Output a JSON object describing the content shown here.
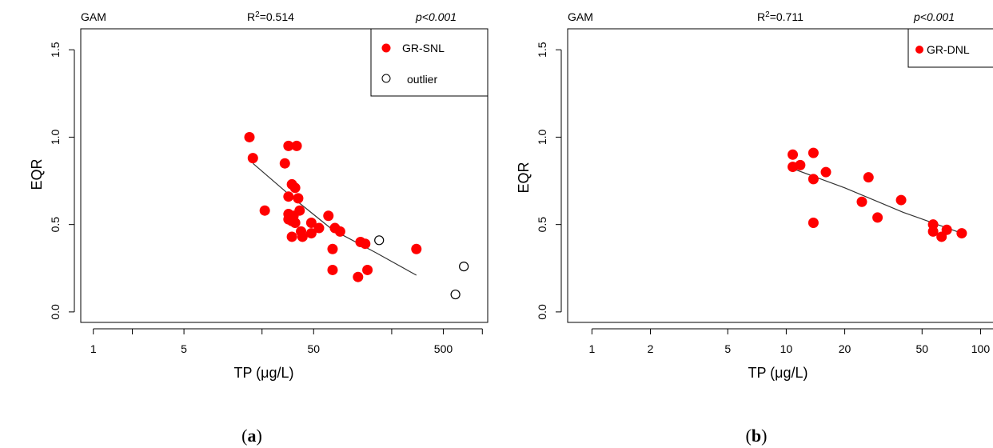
{
  "chart_data": [
    {
      "id": "a",
      "type": "scatter",
      "caption": "a",
      "method": "GAM",
      "r2": "=0.514",
      "pvalue": "p<0.001",
      "xlabel": "TP (μg/L)",
      "ylabel": "EQR",
      "x_scale": "log",
      "xlim": [
        0.8,
        1100
      ],
      "ylim": [
        -0.06,
        1.62
      ],
      "xticks": [
        1,
        5,
        50,
        500
      ],
      "x_minor_ticks": [
        2,
        20,
        200,
        1000
      ],
      "yticks": [
        "0.0",
        "0.5",
        "1.0",
        "1.5"
      ],
      "grid": false,
      "legend_position": "top-right",
      "series": [
        {
          "name": "GR-SNL",
          "marker": "filled-circle",
          "color": "#ff0000",
          "points": [
            [
              16,
              1.0
            ],
            [
              17,
              0.88
            ],
            [
              21,
              0.58
            ],
            [
              30,
              0.85
            ],
            [
              32,
              0.95
            ],
            [
              37,
              0.95
            ],
            [
              32,
              0.66
            ],
            [
              34,
              0.73
            ],
            [
              36,
              0.71
            ],
            [
              38,
              0.65
            ],
            [
              39,
              0.58
            ],
            [
              32,
              0.56
            ],
            [
              33,
              0.55
            ],
            [
              35,
              0.55
            ],
            [
              32,
              0.53
            ],
            [
              34,
              0.52
            ],
            [
              36,
              0.51
            ],
            [
              34,
              0.43
            ],
            [
              40,
              0.46
            ],
            [
              41,
              0.43
            ],
            [
              48,
              0.51
            ],
            [
              48,
              0.45
            ],
            [
              55,
              0.48
            ],
            [
              65,
              0.55
            ],
            [
              73,
              0.48
            ],
            [
              80,
              0.46
            ],
            [
              70,
              0.36
            ],
            [
              70,
              0.24
            ],
            [
              115,
              0.4
            ],
            [
              125,
              0.39
            ],
            [
              130,
              0.24
            ],
            [
              110,
              0.2
            ],
            [
              310,
              0.36
            ]
          ]
        },
        {
          "name": "outlier",
          "marker": "open-circle",
          "color": "#000000",
          "points": [
            [
              160,
              0.41
            ],
            [
              720,
              0.26
            ],
            [
              620,
              0.1
            ]
          ]
        }
      ],
      "fit_line": [
        [
          17,
          0.85
        ],
        [
          35,
          0.65
        ],
        [
          70,
          0.47
        ],
        [
          150,
          0.34
        ],
        [
          310,
          0.21
        ]
      ]
    },
    {
      "id": "b",
      "type": "scatter",
      "caption": "b",
      "method": "GAM",
      "r2": "=0.711",
      "pvalue": "p<0.001",
      "xlabel": "TP (μg/L)",
      "ylabel": "EQR",
      "x_scale": "log",
      "xlim": [
        0.75,
        125
      ],
      "ylim": [
        -0.06,
        1.62
      ],
      "xticks": [
        1,
        2,
        5,
        10,
        20,
        50,
        100
      ],
      "yticks": [
        "0.0",
        "0.5",
        "1.0",
        "1.5"
      ],
      "grid": false,
      "legend_position": "top-right",
      "series": [
        {
          "name": "GR-DNL",
          "marker": "filled-circle",
          "color": "#ff0000",
          "points": [
            [
              10.8,
              0.9
            ],
            [
              10.8,
              0.83
            ],
            [
              11.8,
              0.84
            ],
            [
              13.8,
              0.91
            ],
            [
              13.8,
              0.76
            ],
            [
              13.8,
              0.51
            ],
            [
              16.0,
              0.8
            ],
            [
              24.5,
              0.63
            ],
            [
              26.5,
              0.77
            ],
            [
              29.5,
              0.54
            ],
            [
              39.0,
              0.64
            ],
            [
              57.0,
              0.5
            ],
            [
              57.0,
              0.46
            ],
            [
              63.0,
              0.43
            ],
            [
              67.0,
              0.47
            ],
            [
              80.0,
              0.45
            ]
          ]
        }
      ],
      "fit_line": [
        [
          10.8,
          0.82
        ],
        [
          20,
          0.71
        ],
        [
          40,
          0.57
        ],
        [
          80,
          0.45
        ]
      ]
    }
  ]
}
